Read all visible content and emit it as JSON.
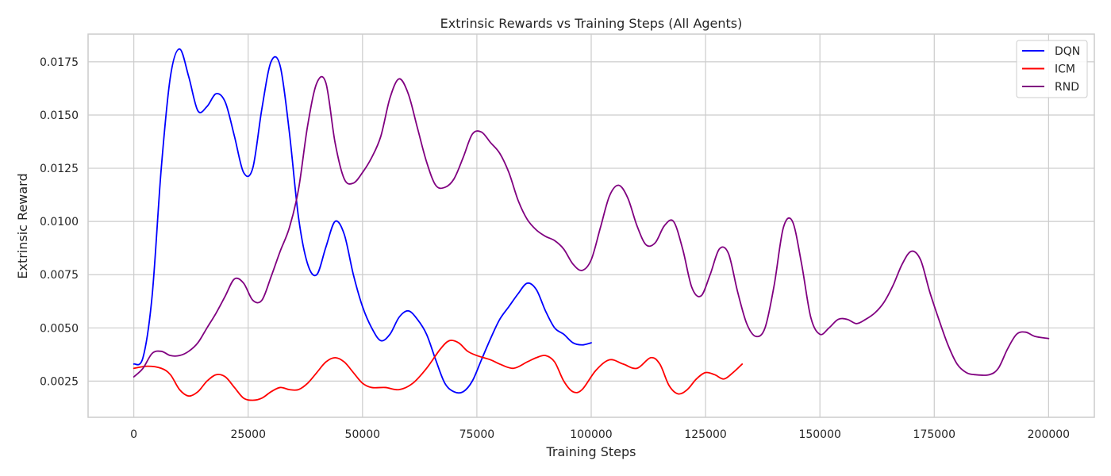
{
  "chart_data": {
    "type": "line",
    "title": "Extrinsic Rewards vs Training Steps (All Agents)",
    "xlabel": "Training Steps",
    "ylabel": "Extrinsic Reward",
    "xlim": [
      -10000,
      210000
    ],
    "ylim": [
      0.0008,
      0.0188
    ],
    "xticks": [
      0,
      25000,
      50000,
      75000,
      100000,
      125000,
      150000,
      175000,
      200000
    ],
    "xtick_labels": [
      "0",
      "25000",
      "50000",
      "75000",
      "100000",
      "125000",
      "150000",
      "175000",
      "200000"
    ],
    "yticks": [
      0.0025,
      0.005,
      0.0075,
      0.01,
      0.0125,
      0.015,
      0.0175
    ],
    "ytick_labels": [
      "0.0025",
      "0.0050",
      "0.0075",
      "0.0100",
      "0.0125",
      "0.0150",
      "0.0175"
    ],
    "grid": true,
    "legend_position": "top-right",
    "series": [
      {
        "name": "DQN",
        "color": "#0000ff",
        "points": [
          [
            0,
            0.0033
          ],
          [
            2000,
            0.0036
          ],
          [
            4000,
            0.0065
          ],
          [
            6000,
            0.0125
          ],
          [
            8000,
            0.0168
          ],
          [
            10000,
            0.0181
          ],
          [
            12000,
            0.0168
          ],
          [
            14000,
            0.0152
          ],
          [
            16000,
            0.0154
          ],
          [
            18000,
            0.016
          ],
          [
            20000,
            0.0156
          ],
          [
            22000,
            0.014
          ],
          [
            24000,
            0.0123
          ],
          [
            26000,
            0.0125
          ],
          [
            28000,
            0.0153
          ],
          [
            30000,
            0.0175
          ],
          [
            32000,
            0.0173
          ],
          [
            34000,
            0.0142
          ],
          [
            36000,
            0.0102
          ],
          [
            38000,
            0.008
          ],
          [
            40000,
            0.0075
          ],
          [
            42000,
            0.0088
          ],
          [
            44000,
            0.01
          ],
          [
            46000,
            0.0094
          ],
          [
            48000,
            0.0075
          ],
          [
            50000,
            0.006
          ],
          [
            52000,
            0.005
          ],
          [
            54000,
            0.0044
          ],
          [
            56000,
            0.0047
          ],
          [
            58000,
            0.0055
          ],
          [
            60000,
            0.0058
          ],
          [
            62000,
            0.0054
          ],
          [
            64000,
            0.0047
          ],
          [
            66000,
            0.0035
          ],
          [
            68000,
            0.0024
          ],
          [
            70000,
            0.002
          ],
          [
            72000,
            0.002
          ],
          [
            74000,
            0.0025
          ],
          [
            76000,
            0.0035
          ],
          [
            78000,
            0.0045
          ],
          [
            80000,
            0.0054
          ],
          [
            82000,
            0.006
          ],
          [
            84000,
            0.0066
          ],
          [
            86000,
            0.0071
          ],
          [
            88000,
            0.0068
          ],
          [
            90000,
            0.0058
          ],
          [
            92000,
            0.005
          ],
          [
            94000,
            0.0047
          ],
          [
            96000,
            0.0043
          ],
          [
            98000,
            0.0042
          ],
          [
            100000,
            0.0043
          ]
        ]
      },
      {
        "name": "ICM",
        "color": "#ff0000",
        "points": [
          [
            0,
            0.0031
          ],
          [
            3000,
            0.0032
          ],
          [
            6000,
            0.0031
          ],
          [
            8000,
            0.0028
          ],
          [
            10000,
            0.0021
          ],
          [
            12000,
            0.0018
          ],
          [
            14000,
            0.002
          ],
          [
            16000,
            0.0025
          ],
          [
            18000,
            0.0028
          ],
          [
            20000,
            0.0027
          ],
          [
            22000,
            0.0022
          ],
          [
            24000,
            0.0017
          ],
          [
            26000,
            0.0016
          ],
          [
            28000,
            0.0017
          ],
          [
            30000,
            0.002
          ],
          [
            32000,
            0.0022
          ],
          [
            34000,
            0.0021
          ],
          [
            36000,
            0.0021
          ],
          [
            38000,
            0.0024
          ],
          [
            40000,
            0.0029
          ],
          [
            42000,
            0.0034
          ],
          [
            44000,
            0.0036
          ],
          [
            46000,
            0.0034
          ],
          [
            48000,
            0.0029
          ],
          [
            50000,
            0.0024
          ],
          [
            52000,
            0.0022
          ],
          [
            55000,
            0.0022
          ],
          [
            58000,
            0.0021
          ],
          [
            61000,
            0.0024
          ],
          [
            64000,
            0.0031
          ],
          [
            67000,
            0.004
          ],
          [
            69000,
            0.0044
          ],
          [
            71000,
            0.0043
          ],
          [
            73000,
            0.0039
          ],
          [
            75000,
            0.0037
          ],
          [
            78000,
            0.0035
          ],
          [
            80000,
            0.0033
          ],
          [
            83000,
            0.0031
          ],
          [
            86000,
            0.0034
          ],
          [
            88000,
            0.0036
          ],
          [
            90000,
            0.0037
          ],
          [
            92000,
            0.0034
          ],
          [
            94000,
            0.0025
          ],
          [
            96000,
            0.002
          ],
          [
            98000,
            0.0021
          ],
          [
            101000,
            0.003
          ],
          [
            104000,
            0.0035
          ],
          [
            107000,
            0.0033
          ],
          [
            110000,
            0.0031
          ],
          [
            113000,
            0.0036
          ],
          [
            115000,
            0.0033
          ],
          [
            117000,
            0.0023
          ],
          [
            119000,
            0.0019
          ],
          [
            121000,
            0.0021
          ],
          [
            123000,
            0.0026
          ],
          [
            125000,
            0.0029
          ],
          [
            127000,
            0.0028
          ],
          [
            129000,
            0.0026
          ],
          [
            131000,
            0.0029
          ],
          [
            133000,
            0.0033
          ]
        ]
      },
      {
        "name": "RND",
        "color": "#800080",
        "points": [
          [
            0,
            0.0027
          ],
          [
            2000,
            0.0031
          ],
          [
            4000,
            0.0038
          ],
          [
            6000,
            0.0039
          ],
          [
            8000,
            0.0037
          ],
          [
            10000,
            0.0037
          ],
          [
            12000,
            0.0039
          ],
          [
            14000,
            0.0043
          ],
          [
            16000,
            0.005
          ],
          [
            18000,
            0.0057
          ],
          [
            20000,
            0.0065
          ],
          [
            22000,
            0.0073
          ],
          [
            24000,
            0.0071
          ],
          [
            26000,
            0.0063
          ],
          [
            28000,
            0.0063
          ],
          [
            30000,
            0.0074
          ],
          [
            32000,
            0.0086
          ],
          [
            34000,
            0.0097
          ],
          [
            36000,
            0.0115
          ],
          [
            38000,
            0.0145
          ],
          [
            40000,
            0.0165
          ],
          [
            42000,
            0.0165
          ],
          [
            44000,
            0.0137
          ],
          [
            46000,
            0.012
          ],
          [
            48000,
            0.0118
          ],
          [
            50000,
            0.0123
          ],
          [
            52000,
            0.013
          ],
          [
            54000,
            0.014
          ],
          [
            56000,
            0.0158
          ],
          [
            58000,
            0.0167
          ],
          [
            60000,
            0.016
          ],
          [
            62000,
            0.0144
          ],
          [
            64000,
            0.0128
          ],
          [
            66000,
            0.0117
          ],
          [
            68000,
            0.0116
          ],
          [
            70000,
            0.012
          ],
          [
            72000,
            0.013
          ],
          [
            74000,
            0.0141
          ],
          [
            76000,
            0.0142
          ],
          [
            78000,
            0.0137
          ],
          [
            80000,
            0.0132
          ],
          [
            82000,
            0.0123
          ],
          [
            84000,
            0.011
          ],
          [
            86000,
            0.0101
          ],
          [
            88000,
            0.0096
          ],
          [
            90000,
            0.0093
          ],
          [
            92000,
            0.0091
          ],
          [
            94000,
            0.0087
          ],
          [
            96000,
            0.008
          ],
          [
            98000,
            0.0077
          ],
          [
            100000,
            0.0082
          ],
          [
            102000,
            0.0097
          ],
          [
            104000,
            0.0112
          ],
          [
            106000,
            0.0117
          ],
          [
            108000,
            0.0111
          ],
          [
            110000,
            0.0098
          ],
          [
            112000,
            0.0089
          ],
          [
            114000,
            0.009
          ],
          [
            116000,
            0.0098
          ],
          [
            118000,
            0.01
          ],
          [
            120000,
            0.0087
          ],
          [
            122000,
            0.0069
          ],
          [
            124000,
            0.0065
          ],
          [
            126000,
            0.0075
          ],
          [
            128000,
            0.0087
          ],
          [
            130000,
            0.0085
          ],
          [
            132000,
            0.0067
          ],
          [
            134000,
            0.0052
          ],
          [
            136000,
            0.0046
          ],
          [
            138000,
            0.005
          ],
          [
            140000,
            0.007
          ],
          [
            142000,
            0.0097
          ],
          [
            144000,
            0.01
          ],
          [
            146000,
            0.008
          ],
          [
            148000,
            0.0055
          ],
          [
            150000,
            0.0047
          ],
          [
            152000,
            0.005
          ],
          [
            154000,
            0.0054
          ],
          [
            156000,
            0.0054
          ],
          [
            158000,
            0.0052
          ],
          [
            160000,
            0.0054
          ],
          [
            162000,
            0.0057
          ],
          [
            164000,
            0.0062
          ],
          [
            166000,
            0.007
          ],
          [
            168000,
            0.008
          ],
          [
            170000,
            0.0086
          ],
          [
            172000,
            0.0082
          ],
          [
            174000,
            0.0067
          ],
          [
            176000,
            0.0054
          ],
          [
            178000,
            0.0042
          ],
          [
            180000,
            0.0033
          ],
          [
            182000,
            0.0029
          ],
          [
            184000,
            0.0028
          ],
          [
            187000,
            0.0028
          ],
          [
            189000,
            0.0031
          ],
          [
            191000,
            0.004
          ],
          [
            193000,
            0.0047
          ],
          [
            195000,
            0.0048
          ],
          [
            197000,
            0.0046
          ],
          [
            200000,
            0.0045
          ]
        ]
      }
    ]
  }
}
